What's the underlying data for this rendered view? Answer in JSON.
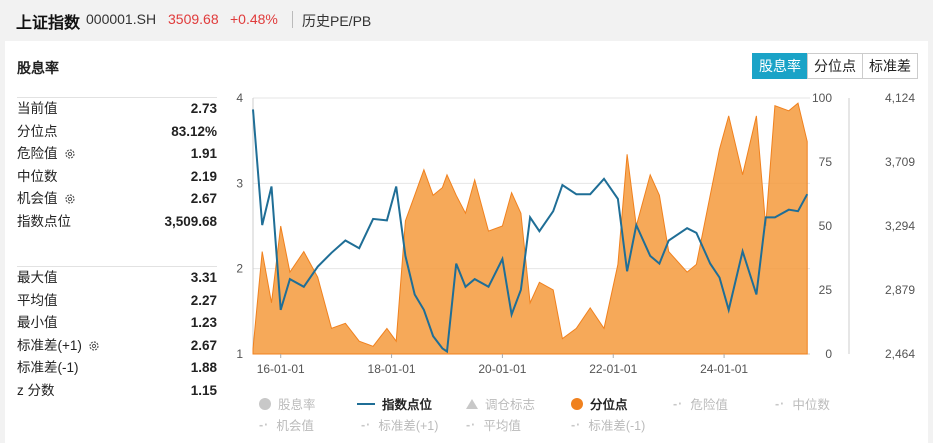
{
  "header": {
    "index_name": "上证指数",
    "index_code": "000001.SH",
    "price": "3509.68",
    "change": "+0.48%",
    "history_link": "历史PE/PB"
  },
  "card": {
    "title": "股息率",
    "tabs": [
      "股息率",
      "分位点",
      "标准差"
    ],
    "active_tab": "股息率"
  },
  "stats_top": [
    {
      "label": "当前值",
      "value": "2.73",
      "gear": false
    },
    {
      "label": "分位点",
      "value": "83.12%",
      "gear": false
    },
    {
      "label": "危险值",
      "value": "1.91",
      "gear": true
    },
    {
      "label": "中位数",
      "value": "2.19",
      "gear": false
    },
    {
      "label": "机会值",
      "value": "2.67",
      "gear": true
    },
    {
      "label": "指数点位",
      "value": "3,509.68",
      "gear": false
    }
  ],
  "stats_bottom": [
    {
      "label": "最大值",
      "value": "3.31",
      "gear": false
    },
    {
      "label": "平均值",
      "value": "2.27",
      "gear": false
    },
    {
      "label": "最小值",
      "value": "1.23",
      "gear": false
    },
    {
      "label": "标准差(+1)",
      "value": "2.67",
      "gear": true
    },
    {
      "label": "标准差(-1)",
      "value": "1.88",
      "gear": false
    },
    {
      "label": "z 分数",
      "value": "1.15",
      "gear": false
    }
  ],
  "legend": [
    {
      "label": "股息率",
      "marker": "dot",
      "color": "#c8c8c8",
      "active": false
    },
    {
      "label": "指数点位",
      "marker": "line",
      "color": "#1f6e96",
      "active": true
    },
    {
      "label": "调仓标志",
      "marker": "triangle",
      "color": "#c8c8c8",
      "active": false
    },
    {
      "label": "分位点",
      "marker": "dot",
      "color": "#f0811e",
      "active": true
    },
    {
      "label": "危险值",
      "marker": "dash",
      "color": "#c8c8c8",
      "active": false
    },
    {
      "label": "中位数",
      "marker": "dash",
      "color": "#c8c8c8",
      "active": false
    },
    {
      "label": "机会值",
      "marker": "dash",
      "color": "#c8c8c8",
      "active": false
    },
    {
      "label": "标准差(+1)",
      "marker": "dash",
      "color": "#c8c8c8",
      "active": false
    },
    {
      "label": "平均值",
      "marker": "dash",
      "color": "#c8c8c8",
      "active": false
    },
    {
      "label": "标准差(-1)",
      "marker": "dash",
      "color": "#c8c8c8",
      "active": false
    }
  ],
  "colors": {
    "accent": "#1aa3c7",
    "up": "#e03b3b",
    "percentile_fill": "#f59a3c",
    "index_line": "#1f6e96"
  },
  "chart_data": {
    "type": "line",
    "x_ticks": [
      "16-01-01",
      "18-01-01",
      "20-01-01",
      "22-01-01",
      "24-01-01"
    ],
    "y_left_ticks": [
      "1",
      "2",
      "3",
      "4"
    ],
    "y_mid_ticks": [
      "0",
      "25",
      "50",
      "75",
      "100"
    ],
    "y_right_ticks": [
      "2,464",
      "2,879",
      "3,294",
      "3,709",
      "4,124"
    ],
    "ylim_left": [
      1,
      4
    ],
    "ylim_mid": [
      0,
      100
    ],
    "ylim_right": [
      2464,
      4124
    ],
    "grid": true,
    "series": [
      {
        "name": "指数点位",
        "axis": "right",
        "dates": [
          "2015-07",
          "2015-09",
          "2015-11",
          "2016-01",
          "2016-03",
          "2016-06",
          "2016-09",
          "2016-12",
          "2017-03",
          "2017-06",
          "2017-09",
          "2017-12",
          "2018-02",
          "2018-04",
          "2018-06",
          "2018-08",
          "2018-10",
          "2018-12",
          "2019-01",
          "2019-03",
          "2019-05",
          "2019-07",
          "2019-10",
          "2020-01",
          "2020-03",
          "2020-05",
          "2020-07",
          "2020-09",
          "2020-12",
          "2021-02",
          "2021-05",
          "2021-08",
          "2021-11",
          "2022-02",
          "2022-04",
          "2022-06",
          "2022-09",
          "2022-11",
          "2023-01",
          "2023-05",
          "2023-07",
          "2023-10",
          "2023-12",
          "2024-02",
          "2024-05",
          "2024-08",
          "2024-10",
          "2024-12",
          "2025-03",
          "2025-05",
          "2025-07"
        ],
        "values": [
          4050,
          3300,
          3550,
          2750,
          2950,
          2900,
          3030,
          3120,
          3200,
          3150,
          3340,
          3330,
          3550,
          3100,
          2850,
          2750,
          2580,
          2500,
          2480,
          3050,
          2900,
          2950,
          2900,
          3080,
          2720,
          2880,
          3350,
          3260,
          3390,
          3560,
          3500,
          3500,
          3600,
          3470,
          3000,
          3300,
          3100,
          3050,
          3200,
          3280,
          3250,
          3050,
          2960,
          2750,
          3130,
          2850,
          3350,
          3350,
          3400,
          3390,
          3500
        ]
      },
      {
        "name": "分位点",
        "axis": "mid",
        "dates": [
          "2015-07",
          "2015-09",
          "2015-11",
          "2016-01",
          "2016-03",
          "2016-06",
          "2016-09",
          "2016-12",
          "2017-03",
          "2017-06",
          "2017-09",
          "2017-12",
          "2018-02",
          "2018-04",
          "2018-06",
          "2018-08",
          "2018-10",
          "2018-12",
          "2019-01",
          "2019-03",
          "2019-05",
          "2019-07",
          "2019-10",
          "2020-01",
          "2020-03",
          "2020-05",
          "2020-07",
          "2020-09",
          "2020-12",
          "2021-02",
          "2021-05",
          "2021-08",
          "2021-11",
          "2022-02",
          "2022-04",
          "2022-06",
          "2022-09",
          "2022-11",
          "2023-01",
          "2023-05",
          "2023-07",
          "2023-10",
          "2023-12",
          "2024-02",
          "2024-05",
          "2024-08",
          "2024-10",
          "2024-12",
          "2025-03",
          "2025-05",
          "2025-07"
        ],
        "values": [
          2,
          40,
          20,
          50,
          32,
          40,
          30,
          10,
          12,
          5,
          3,
          10,
          5,
          52,
          62,
          72,
          62,
          65,
          70,
          62,
          55,
          68,
          48,
          50,
          63,
          55,
          20,
          28,
          25,
          6,
          10,
          18,
          10,
          35,
          78,
          50,
          70,
          62,
          40,
          32,
          35,
          62,
          80,
          93,
          70,
          93,
          50,
          97,
          95,
          98,
          83
        ]
      }
    ]
  }
}
